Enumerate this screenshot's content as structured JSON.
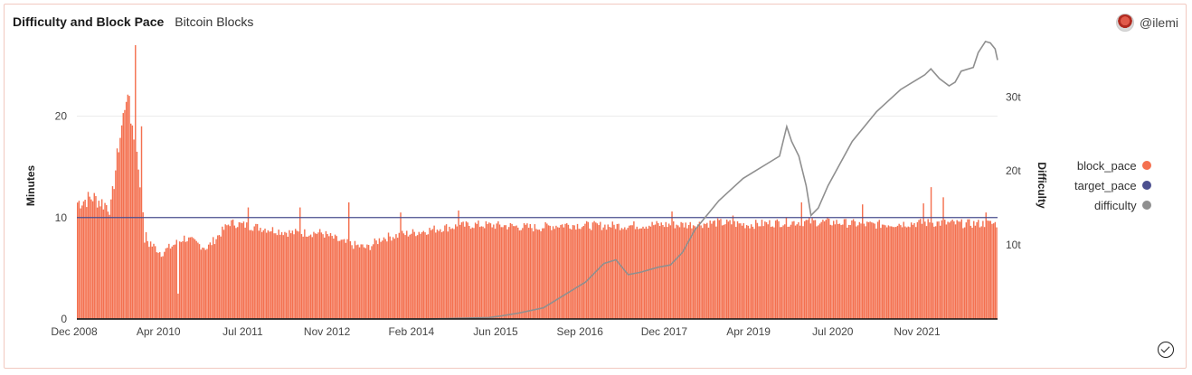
{
  "header": {
    "title": "Difficulty and Block Pace",
    "subtitle": "Bitcoin Blocks"
  },
  "user": {
    "handle": "@ilemi"
  },
  "colors": {
    "block_pace": "#f4704f",
    "target_pace": "#4b4f8f",
    "difficulty": "#8f8f8f"
  },
  "chart_data": {
    "type": "bar",
    "title": "Difficulty and Block Pace",
    "ylabel": "Minutes",
    "y2label": "Difficulty",
    "ylim": [
      0,
      27
    ],
    "y2_ticks": [
      "10t",
      "20t",
      "30t"
    ],
    "y2lim": [
      0,
      37
    ],
    "y_ticks": [
      0,
      10,
      20
    ],
    "x_tick_labels": [
      "Dec 2008",
      "Apr 2010",
      "Jul 2011",
      "Nov 2012",
      "Feb 2014",
      "Jun 2015",
      "Sep 2016",
      "Dec 2017",
      "Apr 2019",
      "Jul 2020",
      "Nov 2021"
    ],
    "legend_position": "right",
    "series": [
      {
        "name": "block_pace",
        "kind": "bar",
        "axis": "left",
        "anchors": [
          [
            0,
            11.5
          ],
          [
            10,
            12
          ],
          [
            22,
            11
          ],
          [
            26,
            16
          ],
          [
            32,
            22
          ],
          [
            36,
            19
          ],
          [
            40,
            15
          ],
          [
            44,
            8
          ],
          [
            55,
            6.5
          ],
          [
            70,
            8
          ],
          [
            85,
            7
          ],
          [
            100,
            9.5
          ],
          [
            120,
            9
          ],
          [
            140,
            8.5
          ],
          [
            160,
            8.5
          ],
          [
            175,
            7.5
          ],
          [
            190,
            7
          ],
          [
            200,
            8
          ],
          [
            220,
            8.5
          ],
          [
            240,
            9
          ],
          [
            260,
            9.3
          ],
          [
            280,
            9.2
          ],
          [
            300,
            9
          ],
          [
            320,
            9.3
          ],
          [
            340,
            9.2
          ],
          [
            360,
            9.2
          ],
          [
            380,
            9.3
          ],
          [
            400,
            9.3
          ],
          [
            420,
            9.5
          ],
          [
            440,
            9.3
          ],
          [
            460,
            9.5
          ],
          [
            480,
            9.6
          ],
          [
            500,
            9.5
          ],
          [
            520,
            9.3
          ],
          [
            540,
            9.4
          ],
          [
            560,
            9.5
          ],
          [
            580,
            9.4
          ],
          [
            604,
            9.4
          ]
        ],
        "spikes": [
          [
            38,
            27
          ],
          [
            34,
            22
          ],
          [
            42,
            19
          ],
          [
            112,
            11
          ],
          [
            146,
            11
          ],
          [
            178,
            11.5
          ],
          [
            212,
            10.5
          ],
          [
            250,
            10.7
          ],
          [
            390,
            10.6
          ],
          [
            430,
            10.2
          ],
          [
            475,
            11.5
          ],
          [
            515,
            11.3
          ],
          [
            560,
            13
          ],
          [
            555,
            11.4
          ],
          [
            568,
            12
          ],
          [
            596,
            10.5
          ],
          [
            66,
            2.5
          ]
        ]
      },
      {
        "name": "target_pace",
        "kind": "line",
        "axis": "left",
        "value": 10
      },
      {
        "name": "difficulty",
        "kind": "line",
        "axis": "right",
        "points": [
          [
            0,
            0
          ],
          [
            290,
            0
          ],
          [
            340,
            0.2
          ],
          [
            350,
            0.4
          ],
          [
            365,
            0.8
          ],
          [
            385,
            1.5
          ],
          [
            405,
            3.5
          ],
          [
            420,
            5
          ],
          [
            435,
            7.5
          ],
          [
            445,
            8
          ],
          [
            455,
            6
          ],
          [
            465,
            6.3
          ],
          [
            480,
            7
          ],
          [
            490,
            7.3
          ],
          [
            500,
            9
          ],
          [
            510,
            12
          ],
          [
            520,
            14
          ],
          [
            530,
            16
          ],
          [
            540,
            17.5
          ],
          [
            550,
            19
          ],
          [
            560,
            20
          ],
          [
            570,
            21
          ],
          [
            580,
            22
          ],
          [
            586,
            26
          ],
          [
            590,
            24
          ],
          [
            596,
            22
          ],
          [
            602,
            18
          ],
          [
            606,
            14
          ],
          [
            612,
            15
          ],
          [
            620,
            18
          ],
          [
            630,
            21
          ],
          [
            640,
            24
          ],
          [
            650,
            26
          ],
          [
            660,
            28
          ],
          [
            670,
            29.5
          ],
          [
            680,
            31
          ],
          [
            690,
            32
          ],
          [
            700,
            33
          ],
          [
            705,
            33.8
          ],
          [
            712,
            32.5
          ],
          [
            720,
            31.5
          ],
          [
            725,
            32
          ],
          [
            730,
            33.5
          ],
          [
            740,
            34
          ],
          [
            744,
            36
          ],
          [
            750,
            37.5
          ],
          [
            754,
            37.3
          ],
          [
            758,
            36.5
          ],
          [
            760,
            35
          ]
        ]
      }
    ]
  }
}
